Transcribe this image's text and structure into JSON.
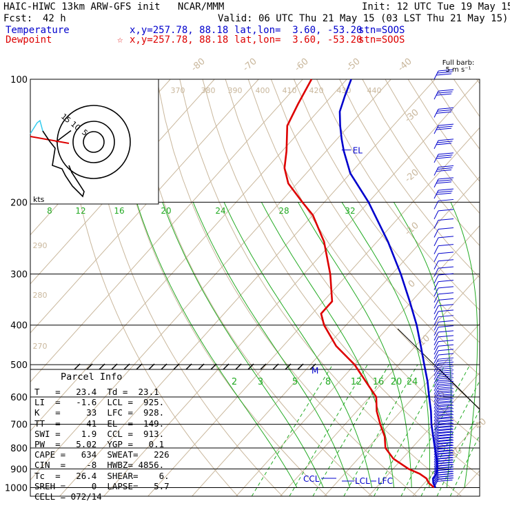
{
  "header": {
    "title": "HAIC-HIWC 13km ARW-GFS init   NCAR/MMM",
    "init": "Init: 12 UTC Tue 19 May 15",
    "fcst_label": "Fcst:",
    "fcst_value": "42 h",
    "valid": "Valid: 06 UTC Thu 21 May 15 (03 LST Thu 21 May 15)",
    "temp_label": "Temperature",
    "temp_xy": "x,y=257.78, 88.18",
    "temp_latlon": "lat,lon=  3.60, -53.20",
    "temp_stn": "stn=SOOS",
    "dew_label": "Dewpoint",
    "dew_xy": "x,y=257.78, 88.18",
    "dew_latlon": "lat,lon=  3.60, -53.20",
    "dew_stn": "stn=SOOS",
    "star": "☆"
  },
  "barb_legend": {
    "line1": "Full barb:",
    "line2": "5 m s⁻¹"
  },
  "hodograph": {
    "units": "kts",
    "ring_labels": [
      "15",
      "10",
      "5"
    ]
  },
  "parcel_info": {
    "title": "Parcel Info",
    "rows": [
      "T   =   23.4  Td =  23.1",
      "LI  =   -1.6  LCL =  925.",
      "K   =     33  LFC =  928.",
      "TT  =     41  EL  =  149.",
      "SWI =    1.9  CCL =  913.",
      "PW  =   5.02  YGP =   0.1",
      "CAPE =   634  SWEAT=   226",
      "CIN  =    -8  HWBZ= 4856.",
      "Tc  =   26.4  SHEAR=    6.",
      "SREH =     0  LAPSE=   5.7",
      "CELL = 072/14"
    ]
  },
  "colors": {
    "temperature": "#0000cc",
    "dewpoint": "#dd0000",
    "isotherm": "#c9b79c",
    "dry_adiabat": "#c9b79c",
    "moist_adiabat": "#22aa22",
    "mixing_ratio": "#22aa22",
    "isobar": "#000000",
    "cyan_hodo": "#33ccee"
  },
  "chart_data": {
    "type": "line",
    "title": "",
    "ylabel": "",
    "y_scale": "log-pressure",
    "y_ticks": [
      100,
      200,
      300,
      400,
      500,
      600,
      700,
      800,
      900,
      1000
    ],
    "isotherm_labels": [
      "-80",
      "-70",
      "-60",
      "-50",
      "-40",
      "-30",
      "-20",
      "-10",
      "0",
      "10",
      "20",
      "30",
      "40"
    ],
    "theta_labels": [
      "370",
      "380",
      "390",
      "400",
      "410",
      "420",
      "430",
      "440",
      "290",
      "280",
      "270"
    ],
    "theta_e_labels": [
      "8",
      "12",
      "16",
      "20",
      "24",
      "28",
      "32"
    ],
    "mixing_ratio_labels": [
      "2",
      "3",
      "5",
      "8",
      "12",
      "16",
      "20",
      "24"
    ],
    "series": [
      {
        "name": "Temperature",
        "points": [
          [
            1000,
            23.4
          ],
          [
            975,
            22
          ],
          [
            950,
            21
          ],
          [
            925,
            20.8
          ],
          [
            900,
            20
          ],
          [
            850,
            17.8
          ],
          [
            800,
            15.2
          ],
          [
            750,
            12.5
          ],
          [
            700,
            9.6
          ],
          [
            650,
            6.8
          ],
          [
            600,
            3.5
          ],
          [
            550,
            0
          ],
          [
            500,
            -4.2
          ],
          [
            450,
            -8.8
          ],
          [
            400,
            -14
          ],
          [
            350,
            -20.4
          ],
          [
            300,
            -28
          ],
          [
            250,
            -37.5
          ],
          [
            200,
            -50
          ],
          [
            170,
            -60
          ],
          [
            150,
            -66
          ],
          [
            140,
            -69
          ],
          [
            130,
            -72
          ],
          [
            120,
            -75
          ],
          [
            110,
            -77
          ],
          [
            100,
            -79
          ]
        ]
      },
      {
        "name": "Dewpoint",
        "points": [
          [
            1000,
            23.1
          ],
          [
            975,
            21
          ],
          [
            950,
            19.5
          ],
          [
            925,
            17
          ],
          [
            900,
            13.5
          ],
          [
            850,
            8
          ],
          [
            800,
            4
          ],
          [
            750,
            1.5
          ],
          [
            700,
            -2
          ],
          [
            650,
            -5.5
          ],
          [
            600,
            -8.5
          ],
          [
            550,
            -14
          ],
          [
            500,
            -20
          ],
          [
            450,
            -28
          ],
          [
            400,
            -35
          ],
          [
            375,
            -38
          ],
          [
            350,
            -38
          ],
          [
            300,
            -44
          ],
          [
            250,
            -52
          ],
          [
            215,
            -60
          ],
          [
            200,
            -65
          ],
          [
            180,
            -72
          ],
          [
            165,
            -76
          ],
          [
            150,
            -79
          ],
          [
            130,
            -84
          ],
          [
            115,
            -86
          ],
          [
            100,
            -88
          ]
        ]
      }
    ],
    "annotations": [
      "EL",
      "M",
      "CCL",
      "LCL",
      "LFC"
    ],
    "hodograph_points": [
      [
        -5,
        0
      ],
      [
        -3,
        1.5
      ],
      [
        -2,
        -1
      ],
      [
        -1,
        -3
      ],
      [
        -2,
        -6
      ],
      [
        0,
        -8
      ],
      [
        1,
        -6.5
      ]
    ],
    "wind_barbs": "right margin, 100-1000 hPa"
  }
}
